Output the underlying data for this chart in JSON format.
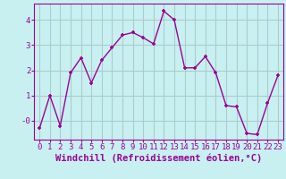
{
  "x": [
    0,
    1,
    2,
    3,
    4,
    5,
    6,
    7,
    8,
    9,
    10,
    11,
    12,
    13,
    14,
    15,
    16,
    17,
    18,
    19,
    20,
    21,
    22,
    23
  ],
  "y": [
    -0.3,
    1.0,
    -0.2,
    1.9,
    2.5,
    1.5,
    2.4,
    2.9,
    3.4,
    3.5,
    3.3,
    3.05,
    4.35,
    4.0,
    2.1,
    2.1,
    2.55,
    1.9,
    0.6,
    0.55,
    -0.5,
    -0.55,
    0.7,
    1.8
  ],
  "line_color": "#990099",
  "marker": "+",
  "background_color": "#c8f0f0",
  "grid_color": "#aacccc",
  "xlabel": "Windchill (Refroidissement éolien,°C)",
  "tick_color": "#990099",
  "ylim": [
    -0.75,
    4.65
  ],
  "xlim": [
    -0.5,
    23.5
  ],
  "ytick_labels": [
    "-0",
    "1",
    "2",
    "3",
    "4"
  ],
  "ytick_values": [
    0,
    1,
    2,
    3,
    4
  ],
  "xtick_labels": [
    "0",
    "1",
    "2",
    "3",
    "4",
    "5",
    "6",
    "7",
    "8",
    "9",
    "10",
    "11",
    "12",
    "13",
    "14",
    "15",
    "16",
    "17",
    "18",
    "19",
    "20",
    "21",
    "22",
    "23"
  ],
  "font_size": 6.5,
  "xlabel_font_size": 7.5,
  "line_width": 1.0,
  "marker_size": 3.5
}
